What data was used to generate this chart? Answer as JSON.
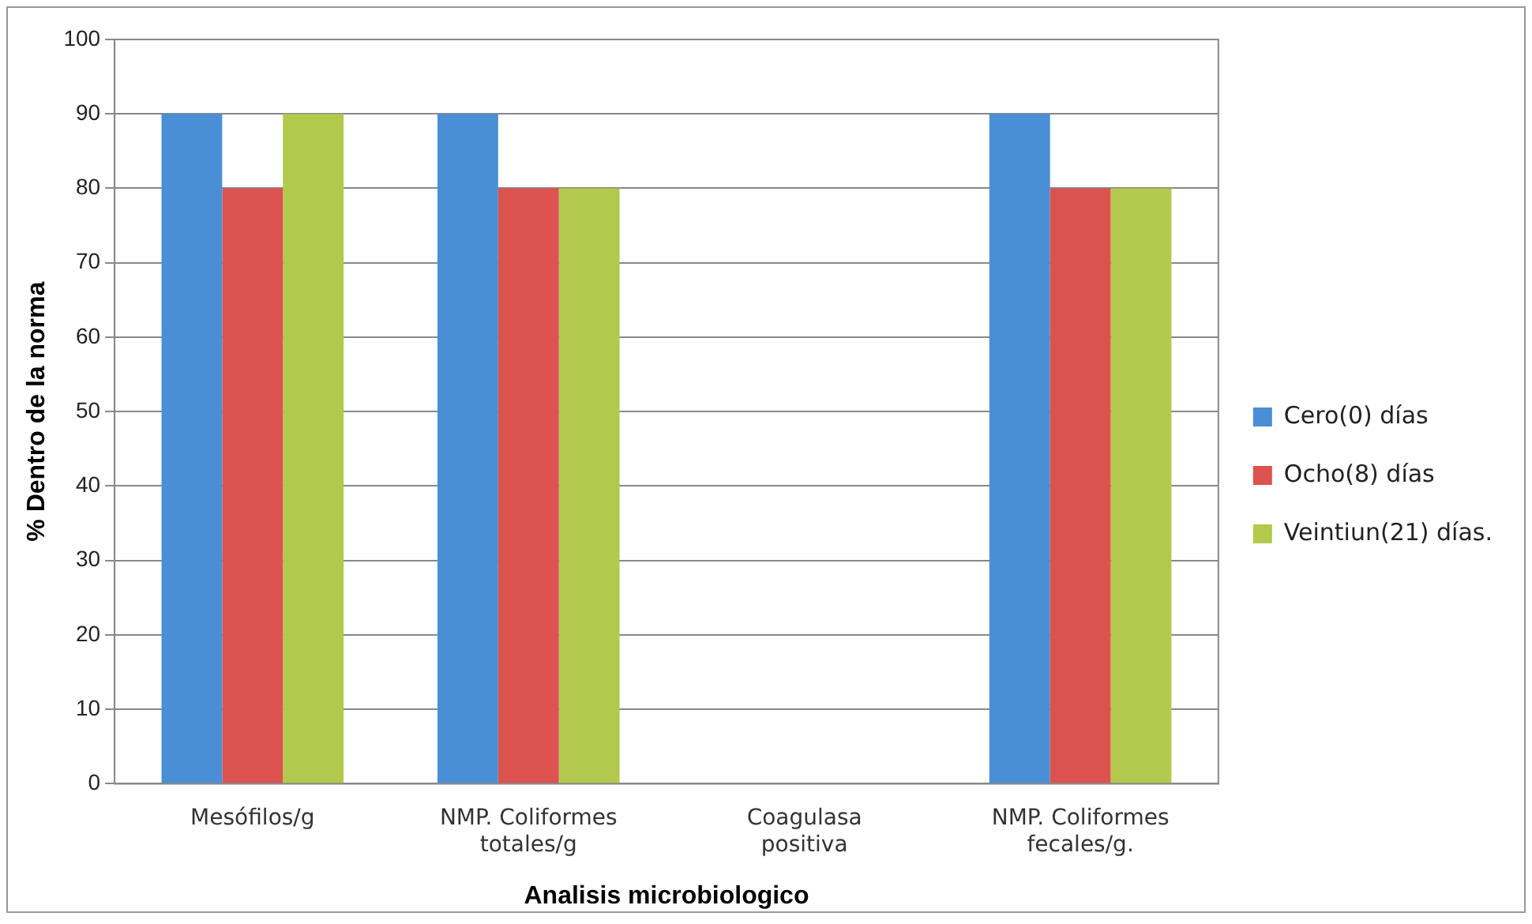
{
  "chart_data": {
    "type": "bar",
    "xlabel": "Analisis microbiologico",
    "ylabel": "% Dentro de la norma",
    "categories": [
      "Mesófilos/g",
      "NMP. Coliformes totales/g",
      "Coagulasa positiva",
      "NMP. Coliformes fecales/g."
    ],
    "series": [
      {
        "name": "Cero(0) días",
        "color": "#4a8fd6",
        "values": [
          90,
          90,
          0,
          90
        ]
      },
      {
        "name": "Ocho(8) días",
        "color": "#dc524e",
        "values": [
          80,
          80,
          0,
          80
        ]
      },
      {
        "name": "Veintiun(21) días.",
        "color": "#b3c94c",
        "values": [
          90,
          80,
          0,
          80
        ]
      }
    ],
    "ylim": [
      0,
      100
    ],
    "yticks": [
      0,
      10,
      20,
      30,
      40,
      50,
      60,
      70,
      80,
      90,
      100
    ],
    "grid": "y",
    "legend": "right"
  }
}
